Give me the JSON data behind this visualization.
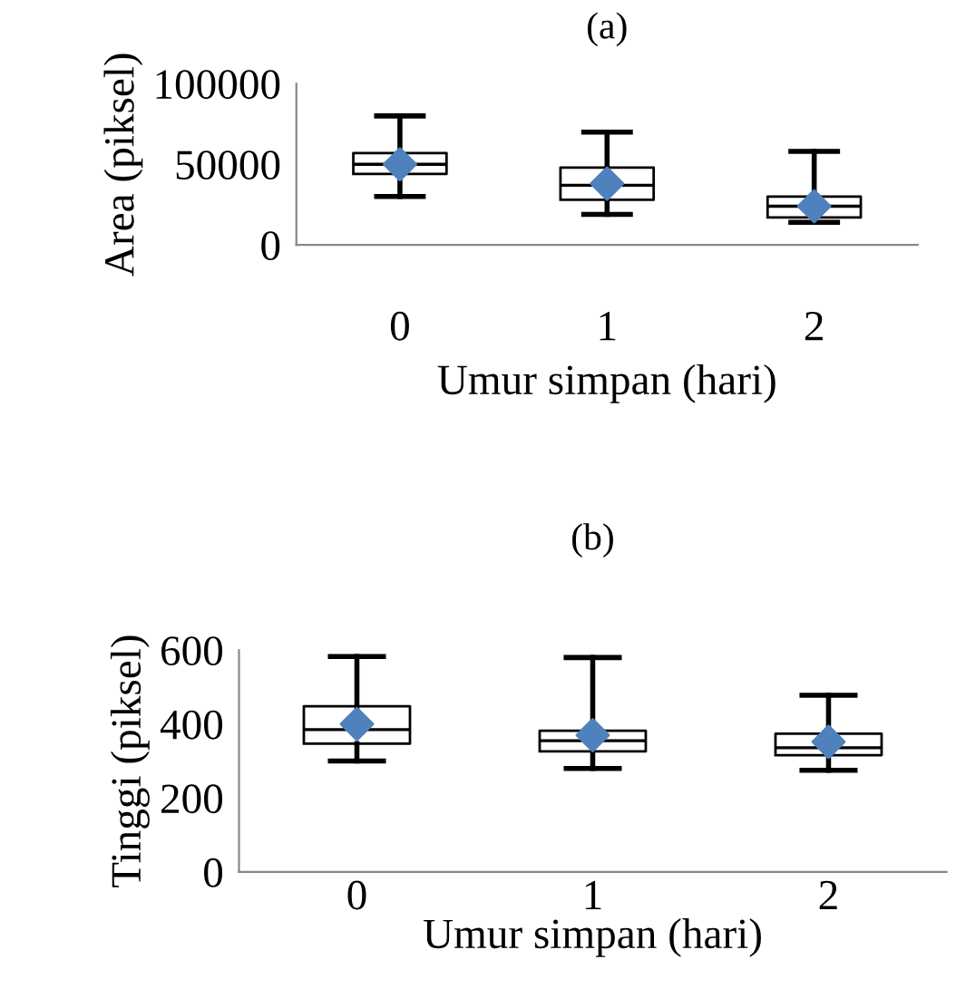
{
  "chart_data": [
    {
      "type": "box",
      "title": "(a)",
      "xlabel": "Umur simpan (hari)",
      "ylabel": "Area (piksel)",
      "categories": [
        "0",
        "1",
        "2"
      ],
      "ylim": [
        0,
        100000
      ],
      "yticks": [
        0,
        50000,
        100000
      ],
      "grid": false,
      "legend": false,
      "series": [
        {
          "color": "#000000",
          "boxes": [
            {
              "low": 30000,
              "q1": 44000,
              "median": 50000,
              "q3": 57000,
              "high": 80000
            },
            {
              "low": 19000,
              "q1": 28000,
              "median": 37000,
              "q3": 48000,
              "high": 70000
            },
            {
              "low": 14000,
              "q1": 17000,
              "median": 24000,
              "q3": 30000,
              "high": 58000
            }
          ]
        },
        {
          "type": "scatter",
          "marker": "diamond",
          "color": "#4f81bd",
          "x": [
            "0",
            "1",
            "2"
          ],
          "values": [
            50000,
            38000,
            24000
          ]
        }
      ]
    },
    {
      "type": "box",
      "title": "(b)",
      "xlabel": "Umur simpan (hari)",
      "ylabel": "Tinggi (piksel)",
      "categories": [
        "0",
        "1",
        "2"
      ],
      "ylim": [
        0,
        600
      ],
      "yticks": [
        0,
        200,
        400,
        600
      ],
      "grid": false,
      "legend": false,
      "series": [
        {
          "color": "#000000",
          "boxes": [
            {
              "low": 300,
              "q1": 347,
              "median": 385,
              "q3": 448,
              "high": 583
            },
            {
              "low": 280,
              "q1": 326,
              "median": 355,
              "q3": 382,
              "high": 580
            },
            {
              "low": 275,
              "q1": 316,
              "median": 336,
              "q3": 374,
              "high": 478
            }
          ]
        },
        {
          "type": "scatter",
          "marker": "diamond",
          "color": "#4f81bd",
          "x": [
            "0",
            "1",
            "2"
          ],
          "values": [
            400,
            370,
            352
          ]
        }
      ]
    }
  ]
}
